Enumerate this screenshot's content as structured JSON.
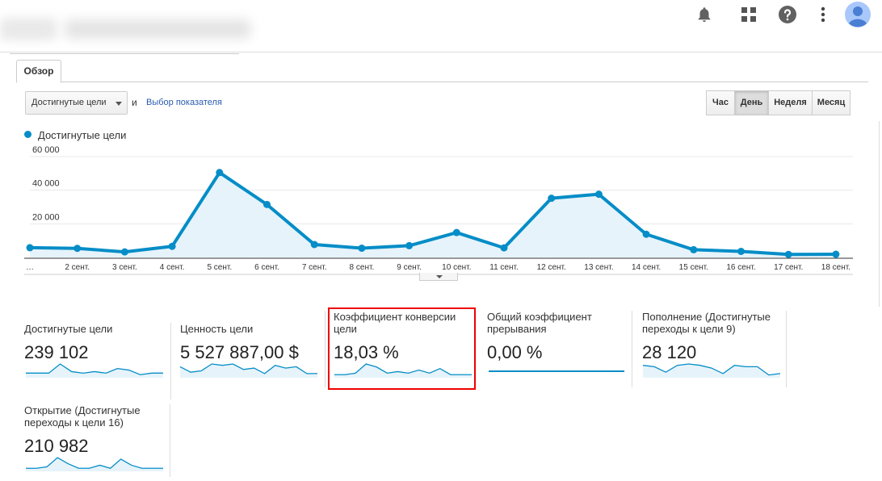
{
  "header": {
    "icons": [
      "bell-icon",
      "apps-grid-icon",
      "help-icon",
      "more-vert-icon",
      "account-avatar-icon"
    ]
  },
  "tabs": [
    {
      "label": "Обзор"
    }
  ],
  "controls": {
    "metric_select": "Достигнутые цели",
    "and_text": "и",
    "choose_metric_link": "Выбор показателя",
    "periods": [
      "Час",
      "День",
      "Неделя",
      "Месяц"
    ],
    "active_period": "День"
  },
  "chart_data": {
    "type": "area",
    "series": [
      {
        "name": "Достигнутые цели",
        "color": "#058dc7",
        "x": [
          "…",
          "2 сент.",
          "3 сент.",
          "4 сент.",
          "5 сент.",
          "6 сент.",
          "7 сент.",
          "8 сент.",
          "9 сент.",
          "10 сент.",
          "11 сент.",
          "12 сент.",
          "13 сент.",
          "14 сент.",
          "15 сент.",
          "16 сент.",
          "17 сент.",
          "18 сент."
        ],
        "values": [
          5800,
          5400,
          3300,
          6600,
          50500,
          31500,
          7700,
          5500,
          7000,
          14800,
          5700,
          35200,
          37600,
          13800,
          4600,
          3600,
          1800,
          1900
        ]
      }
    ],
    "y_ticks": [
      "20 000",
      "40 000",
      "60 000"
    ],
    "ylim": [
      0,
      60000
    ],
    "grid": true
  },
  "scorecards": [
    {
      "label": "Достигнутые цели",
      "value": "239 102",
      "spark": [
        3,
        3,
        3,
        9,
        4,
        3,
        4,
        3,
        6,
        5,
        2,
        3,
        3
      ]
    },
    {
      "label": "Ценность цели",
      "value": "5 527 887,00 $",
      "spark": [
        8,
        4,
        5,
        10,
        9,
        10,
        6,
        7,
        3,
        9,
        7,
        8,
        3,
        3
      ]
    },
    {
      "label": "Коэффициент конверсии цели",
      "value": "18,03 %",
      "spark": [
        2,
        2,
        3,
        9,
        7,
        3,
        4,
        3,
        5,
        3,
        6,
        2,
        2,
        2
      ]
    },
    {
      "label": "Общий коэффициент прерывания",
      "value": "0,00 %",
      "spark": [
        0,
        0,
        0,
        0,
        0,
        0,
        0,
        0
      ]
    },
    {
      "label": "Пополнение (Достигнутые переходы к цели 9)",
      "value": "28 120",
      "spark": [
        9,
        8,
        4,
        9,
        10,
        9,
        7,
        3,
        9,
        8,
        8,
        2,
        3
      ]
    },
    {
      "label": "Открытие (Достигнутые переходы к цели 16)",
      "value": "210 982",
      "spark": [
        2,
        2,
        3,
        9,
        5,
        2,
        2,
        4,
        2,
        8,
        4,
        2,
        2,
        2
      ]
    }
  ]
}
